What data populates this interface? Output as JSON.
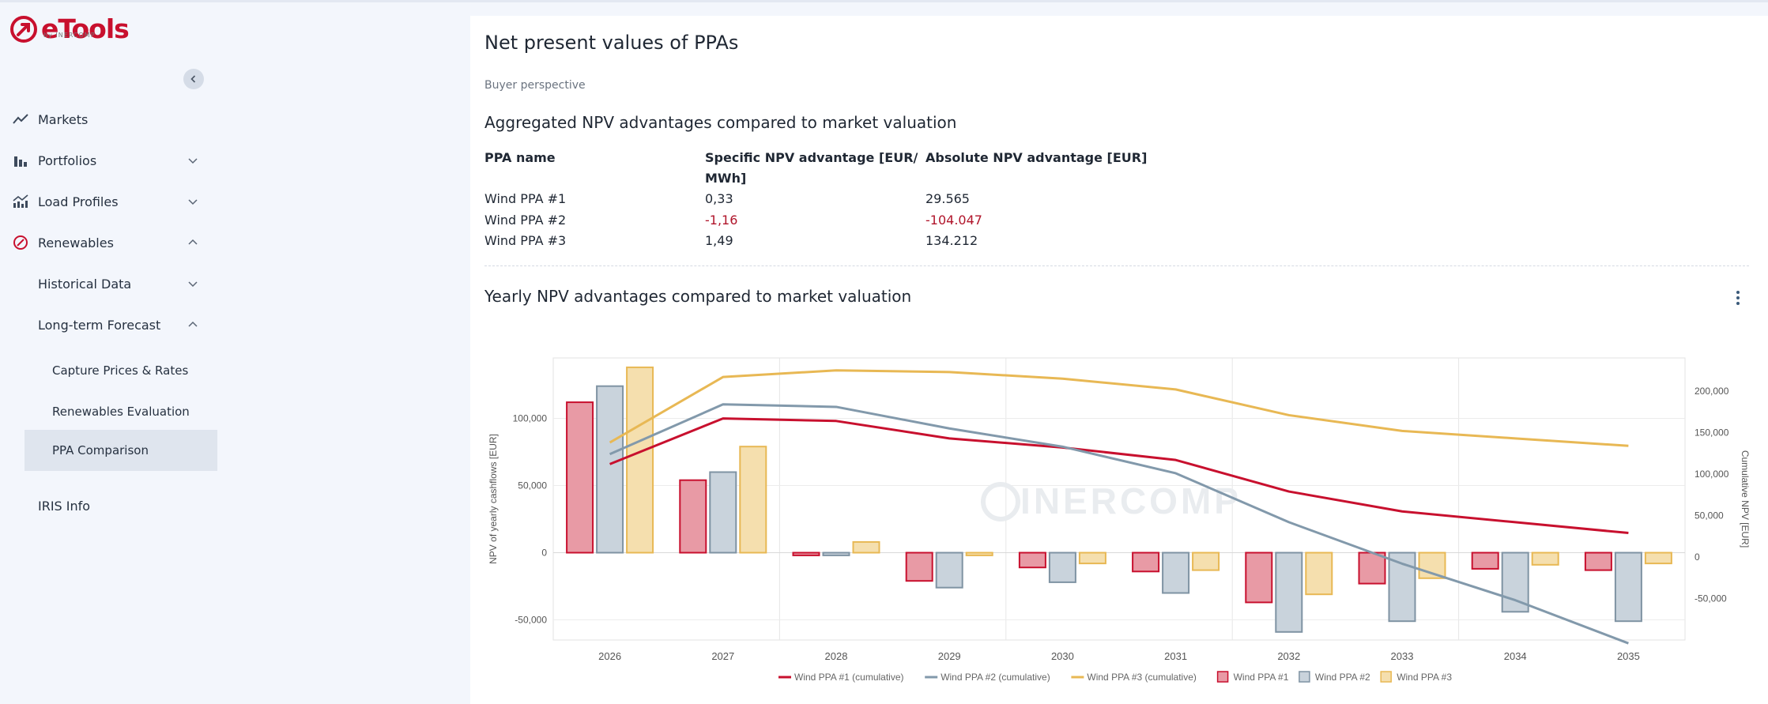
{
  "app": {
    "logo_text": "eTools",
    "logo_sub": "by INERCOMP",
    "brand_color": "#c8102e"
  },
  "sidebar": {
    "items": [
      {
        "label": "Markets",
        "icon": "trend-line-icon"
      },
      {
        "label": "Portfolios",
        "icon": "bar-chart-icon"
      },
      {
        "label": "Load Profiles",
        "icon": "load-profile-icon"
      },
      {
        "label": "Renewables",
        "icon": "leaf-icon"
      },
      {
        "label": "Historical Data"
      },
      {
        "label": "Long-term Forecast"
      },
      {
        "label": "Capture Prices & Rates"
      },
      {
        "label": "Renewables Evaluation"
      },
      {
        "label": "PPA Comparison"
      },
      {
        "label": "IRIS Info"
      }
    ]
  },
  "main": {
    "title": "Net present values of PPAs",
    "subtitle": "Buyer perspective",
    "aggregated_title": "Aggregated NPV advantages compared to market valuation",
    "table": {
      "headers": [
        "PPA name",
        "Specific NPV advantage [EUR/\nMWh]",
        "Absolute NPV advantage [EUR]"
      ],
      "header_line1": "Specific NPV advantage [EUR/",
      "header_line2": "MWh]",
      "rows": [
        {
          "name": "Wind PPA #1",
          "specific": "0,33",
          "absolute": "29.565"
        },
        {
          "name": "Wind PPA #2",
          "specific": "-1,16",
          "absolute": "-104.047"
        },
        {
          "name": "Wind PPA #3",
          "specific": "1,49",
          "absolute": "134.212"
        }
      ]
    },
    "yearly_title": "Yearly NPV advantages compared to market valuation"
  },
  "chart_data": {
    "type": "bar",
    "categories": [
      "2026",
      "2027",
      "2028",
      "2029",
      "2030",
      "2031",
      "2032",
      "2033",
      "2034",
      "2035"
    ],
    "ylabel": "NPV of yearly cashflows [EUR]",
    "y2label": "Cumulative NPV [EUR]",
    "ylim": [
      -65000,
      145000
    ],
    "y2lim": [
      -100000,
      240000
    ],
    "yticks": [
      -50000,
      0,
      50000,
      100000
    ],
    "y2ticks": [
      -50000,
      0,
      50000,
      100000,
      150000,
      200000
    ],
    "ytick_labels": [
      "-50,000",
      "0",
      "50,000",
      "100,000"
    ],
    "y2tick_labels": [
      "-50,000",
      "0",
      "50,000",
      "100,000",
      "150,000",
      "200,000"
    ],
    "watermark": "INERCOMP",
    "series": [
      {
        "name": "Wind PPA #1",
        "kind": "bar",
        "axis": "left",
        "color": "#c8102e",
        "fill": "#e89aa5",
        "values": [
          112000,
          54000,
          -2000,
          -21000,
          -11000,
          -14000,
          -37000,
          -23000,
          -12000,
          -13000
        ]
      },
      {
        "name": "Wind PPA #2",
        "kind": "bar",
        "axis": "left",
        "color": "#7f93a3",
        "fill": "#c9d3dc",
        "values": [
          124000,
          60000,
          -2000,
          -26000,
          -22000,
          -30000,
          -59000,
          -51000,
          -44000,
          -51000
        ]
      },
      {
        "name": "Wind PPA #3",
        "kind": "bar",
        "axis": "left",
        "color": "#e8b854",
        "fill": "#f5dfae",
        "values": [
          138000,
          79000,
          8000,
          -2000,
          -8000,
          -13000,
          -31000,
          -19000,
          -9000,
          -8000
        ]
      },
      {
        "name": "Wind PPA #1 (cumulative)",
        "kind": "line",
        "axis": "right",
        "color": "#c8102e",
        "values": [
          112000,
          167000,
          164000,
          143000,
          132000,
          117000,
          79000,
          55000,
          42000,
          29000
        ]
      },
      {
        "name": "Wind PPA #2 (cumulative)",
        "kind": "line",
        "axis": "right",
        "color": "#8299ab",
        "values": [
          124000,
          184000,
          181000,
          155000,
          133000,
          101000,
          42000,
          -8000,
          -52000,
          -104000
        ]
      },
      {
        "name": "Wind PPA #3 (cumulative)",
        "kind": "line",
        "axis": "right",
        "color": "#e8b854",
        "values": [
          138000,
          217000,
          225000,
          223000,
          215000,
          202000,
          171000,
          152000,
          143000,
          134000
        ]
      }
    ],
    "legend": [
      "Wind PPA #1 (cumulative)",
      "Wind PPA #2 (cumulative)",
      "Wind PPA #3 (cumulative)",
      "Wind PPA #1",
      "Wind PPA #2",
      "Wind PPA #3"
    ],
    "legend_position": "bottom",
    "grid": true
  }
}
